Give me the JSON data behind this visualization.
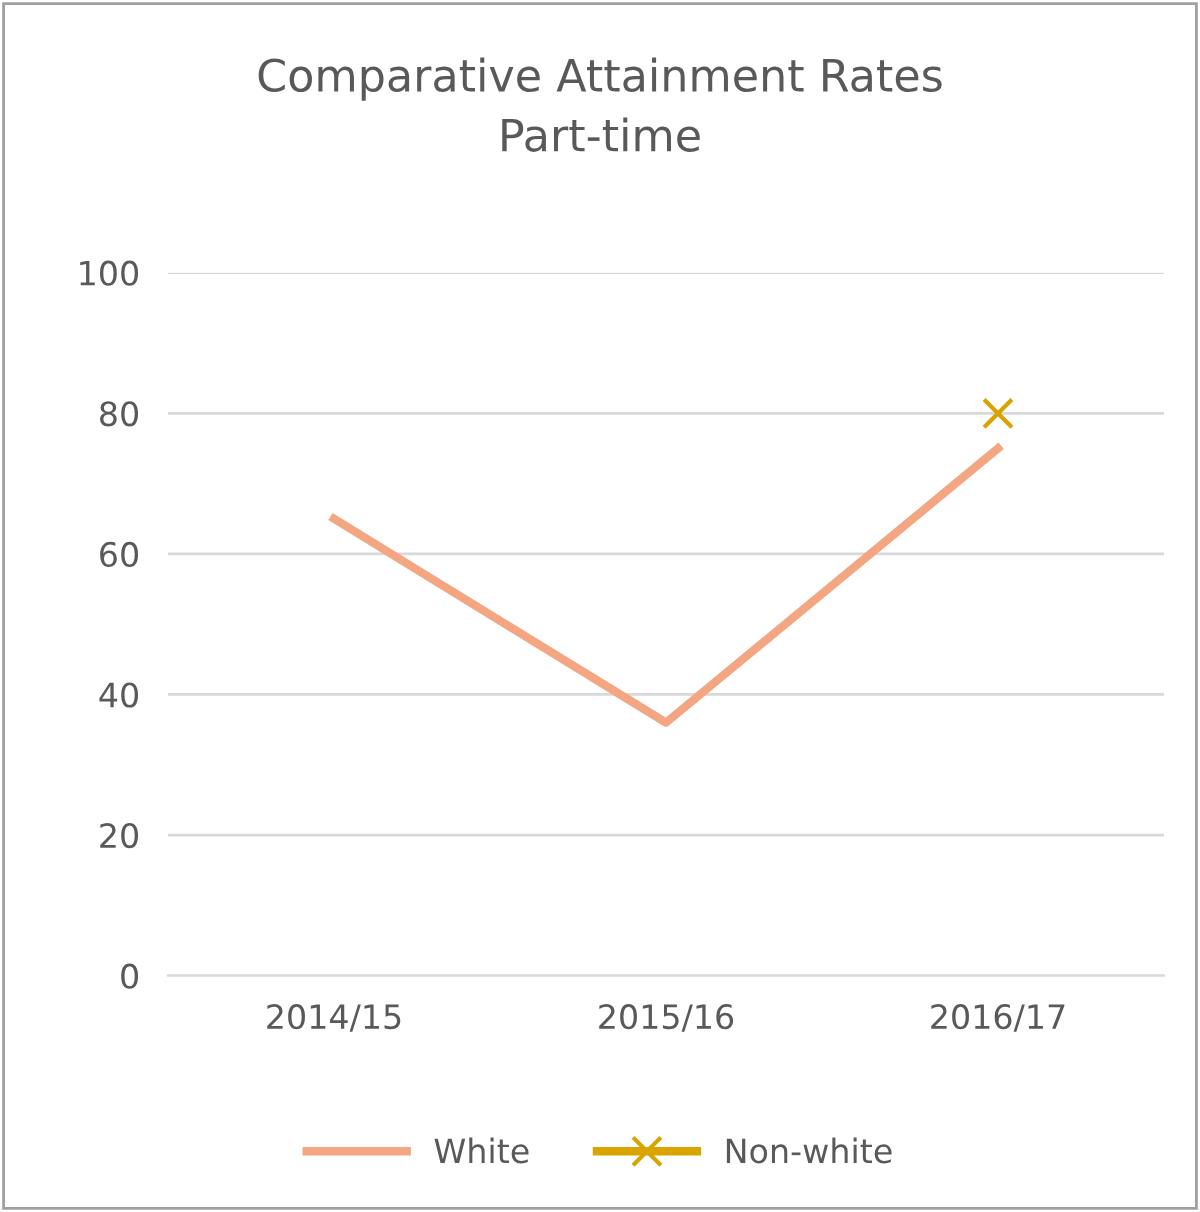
{
  "chart_data": {
    "type": "line",
    "title": "Comparative Attainment Rates\nPart-time",
    "categories": [
      "2014/15",
      "2015/16",
      "2016/17"
    ],
    "series": [
      {
        "name": "White",
        "color": "#f4a582",
        "values": [
          65,
          36,
          75
        ],
        "marker": "none"
      },
      {
        "name": "Non-white",
        "color": "#d9a400",
        "values": [
          null,
          null,
          80
        ],
        "marker": "cross"
      }
    ],
    "ylim": [
      0,
      100
    ],
    "yticks": [
      0,
      20,
      40,
      60,
      80,
      100
    ],
    "grid": "y",
    "legend": "bottom",
    "line_style": "solid"
  }
}
